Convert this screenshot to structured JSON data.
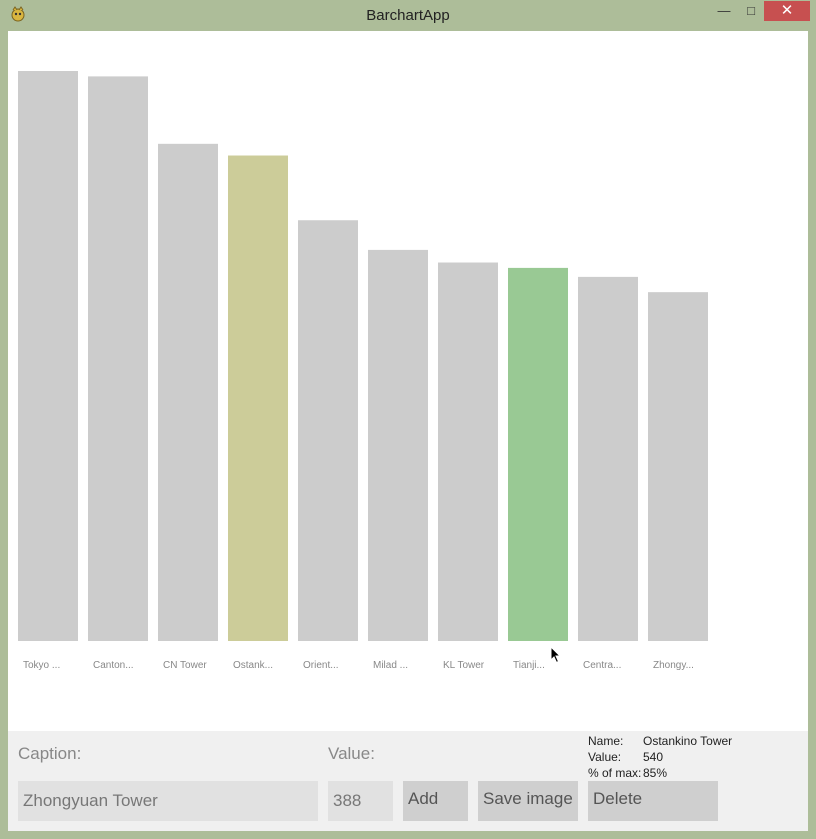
{
  "window": {
    "title": "BarchartApp",
    "icons": [
      "app-icon",
      "minimize-icon",
      "maximize-icon",
      "close-icon"
    ]
  },
  "chart_data": {
    "type": "bar",
    "categories": [
      "Tokyo ...",
      "Canton...",
      "CN Tower",
      "Ostank...",
      "Orient...",
      "Milad ...",
      "KL Tower",
      "Tianji...",
      "Centra...",
      "Zhongy..."
    ],
    "values": [
      634,
      628,
      553,
      540,
      468,
      435,
      421,
      415,
      405,
      388
    ],
    "ylim": [
      0,
      634
    ],
    "colors": {
      "default": "#cccccc",
      "selected": "#cccc99",
      "hover": "#99c994"
    },
    "selected_index": 3,
    "hover_index": 7,
    "label_color": "#888888"
  },
  "form": {
    "caption_label": "Caption:",
    "caption_value": "Zhongyuan Tower",
    "value_label": "Value:",
    "value_value": "388",
    "add_label": "Add",
    "save_label": "Save image",
    "delete_label": "Delete"
  },
  "info": {
    "name_key": "Name:",
    "name_val": "Ostankino Tower",
    "value_key": "Value:",
    "value_val": "540",
    "pct_key": "% of max:",
    "pct_val": "85%"
  }
}
